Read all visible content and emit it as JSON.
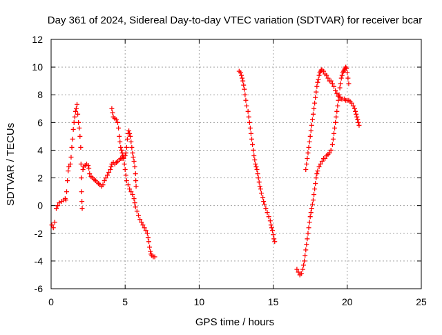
{
  "chart_data": {
    "type": "scatter",
    "title": "Day 361 of 2024, Sidereal Day-to-day VTEC variation (SDTVAR) for receiver bcar",
    "xlabel": "GPS time / hours",
    "ylabel": "SDTVAR / TECUs",
    "xlim": [
      0,
      25
    ],
    "ylim": [
      -6,
      12
    ],
    "xticks": [
      "0",
      "5",
      "10",
      "15",
      "20",
      "25"
    ],
    "yticks": [
      "-6",
      "-4",
      "-2",
      "0",
      "2",
      "4",
      "6",
      "8",
      "10",
      "12"
    ],
    "grid": true,
    "marker": "+",
    "color": "#ff0000",
    "series": [
      {
        "points": [
          [
            0.05,
            -1.4
          ],
          [
            0.15,
            -1.6
          ],
          [
            0.25,
            -1.2
          ],
          [
            0.35,
            -0.2
          ],
          [
            0.45,
            0.0
          ],
          [
            0.55,
            0.2
          ],
          [
            0.7,
            0.3
          ],
          [
            0.85,
            0.4
          ],
          [
            0.95,
            0.5
          ],
          [
            1.0,
            0.4
          ],
          [
            1.05,
            1.0
          ],
          [
            1.1,
            1.8
          ],
          [
            1.15,
            2.5
          ],
          [
            1.2,
            2.8
          ],
          [
            1.3,
            3.0
          ],
          [
            1.35,
            3.5
          ],
          [
            1.4,
            4.2
          ],
          [
            1.45,
            4.8
          ],
          [
            1.5,
            5.5
          ],
          [
            1.55,
            6.0
          ],
          [
            1.6,
            6.4
          ],
          [
            1.65,
            6.8
          ],
          [
            1.7,
            7.0
          ],
          [
            1.75,
            7.3
          ],
          [
            1.8,
            6.6
          ],
          [
            1.85,
            6.0
          ],
          [
            1.9,
            5.6
          ],
          [
            1.95,
            5.0
          ],
          [
            2.0,
            4.2
          ],
          [
            2.02,
            3.0
          ],
          [
            2.04,
            2.0
          ],
          [
            2.06,
            1.0
          ],
          [
            2.08,
            0.3
          ],
          [
            2.1,
            -0.2
          ],
          [
            2.15,
            2.6
          ],
          [
            2.2,
            2.8
          ],
          [
            2.3,
            2.9
          ],
          [
            2.4,
            3.0
          ],
          [
            2.5,
            2.9
          ],
          [
            2.55,
            2.7
          ],
          [
            2.6,
            2.3
          ],
          [
            2.7,
            2.1
          ],
          [
            2.8,
            2.0
          ],
          [
            2.9,
            1.9
          ],
          [
            3.0,
            1.8
          ],
          [
            3.1,
            1.7
          ],
          [
            3.2,
            1.6
          ],
          [
            3.3,
            1.5
          ],
          [
            3.4,
            1.4
          ],
          [
            3.5,
            1.5
          ],
          [
            3.6,
            1.8
          ],
          [
            3.7,
            2.0
          ],
          [
            3.8,
            2.2
          ],
          [
            3.9,
            2.4
          ],
          [
            4.0,
            2.6
          ],
          [
            4.05,
            2.8
          ],
          [
            4.1,
            3.0
          ],
          [
            4.2,
            3.1
          ],
          [
            4.3,
            3.0
          ],
          [
            4.4,
            3.1
          ],
          [
            4.5,
            3.2
          ],
          [
            4.6,
            3.3
          ],
          [
            4.7,
            3.4
          ],
          [
            4.8,
            3.4
          ],
          [
            4.9,
            3.5
          ],
          [
            5.0,
            3.6
          ],
          [
            5.05,
            3.8
          ],
          [
            5.1,
            4.2
          ],
          [
            5.15,
            4.8
          ],
          [
            5.2,
            5.2
          ],
          [
            5.25,
            5.4
          ],
          [
            5.3,
            5.2
          ],
          [
            5.35,
            5.0
          ],
          [
            5.4,
            4.6
          ],
          [
            5.45,
            4.2
          ],
          [
            5.5,
            3.8
          ],
          [
            5.55,
            3.5
          ],
          [
            5.6,
            3.2
          ],
          [
            5.65,
            2.8
          ],
          [
            5.7,
            2.3
          ],
          [
            5.72,
            1.8
          ],
          [
            5.74,
            1.4
          ]
        ]
      },
      {
        "points": [
          [
            4.1,
            7.0
          ],
          [
            4.15,
            6.7
          ],
          [
            4.2,
            6.4
          ],
          [
            4.3,
            6.3
          ],
          [
            4.4,
            6.2
          ],
          [
            4.5,
            6.0
          ],
          [
            4.55,
            5.6
          ],
          [
            4.6,
            5.0
          ],
          [
            4.65,
            4.6
          ],
          [
            4.7,
            4.2
          ],
          [
            4.75,
            4.0
          ],
          [
            4.8,
            3.8
          ],
          [
            4.85,
            3.6
          ],
          [
            4.9,
            3.4
          ],
          [
            4.95,
            3.0
          ],
          [
            5.0,
            2.6
          ],
          [
            5.05,
            2.2
          ],
          [
            5.1,
            1.8
          ],
          [
            5.2,
            1.5
          ],
          [
            5.3,
            1.2
          ],
          [
            5.4,
            1.0
          ],
          [
            5.5,
            0.8
          ],
          [
            5.6,
            0.5
          ],
          [
            5.65,
            0.2
          ],
          [
            5.7,
            -0.1
          ],
          [
            5.8,
            -0.4
          ],
          [
            5.9,
            -0.7
          ],
          [
            6.0,
            -1.0
          ],
          [
            6.1,
            -1.2
          ],
          [
            6.2,
            -1.4
          ],
          [
            6.3,
            -1.6
          ],
          [
            6.4,
            -1.8
          ],
          [
            6.5,
            -2.0
          ],
          [
            6.55,
            -2.3
          ],
          [
            6.6,
            -2.6
          ],
          [
            6.65,
            -3.0
          ],
          [
            6.7,
            -3.3
          ],
          [
            6.75,
            -3.5
          ],
          [
            6.8,
            -3.6
          ],
          [
            6.9,
            -3.7
          ],
          [
            7.0,
            -3.7
          ]
        ]
      },
      {
        "points": [
          [
            12.7,
            9.7
          ],
          [
            12.8,
            9.6
          ],
          [
            12.85,
            9.4
          ],
          [
            12.9,
            9.2
          ],
          [
            12.95,
            9.0
          ],
          [
            13.0,
            8.7
          ],
          [
            13.05,
            8.4
          ],
          [
            13.1,
            8.0
          ],
          [
            13.15,
            7.6
          ],
          [
            13.2,
            7.2
          ],
          [
            13.3,
            6.8
          ],
          [
            13.35,
            6.4
          ],
          [
            13.4,
            6.0
          ],
          [
            13.45,
            5.6
          ],
          [
            13.5,
            5.2
          ],
          [
            13.55,
            4.8
          ],
          [
            13.6,
            4.4
          ],
          [
            13.65,
            4.0
          ],
          [
            13.7,
            3.6
          ],
          [
            13.75,
            3.3
          ],
          [
            13.8,
            3.0
          ],
          [
            13.85,
            2.8
          ],
          [
            13.9,
            2.6
          ],
          [
            13.95,
            2.3
          ],
          [
            14.0,
            2.0
          ],
          [
            14.05,
            1.7
          ],
          [
            14.1,
            1.4
          ],
          [
            14.15,
            1.2
          ],
          [
            14.2,
            0.9
          ],
          [
            14.3,
            0.6
          ],
          [
            14.35,
            0.3
          ],
          [
            14.4,
            0.1
          ],
          [
            14.5,
            -0.2
          ],
          [
            14.6,
            -0.5
          ],
          [
            14.7,
            -0.8
          ],
          [
            14.8,
            -1.1
          ],
          [
            14.85,
            -1.4
          ],
          [
            14.9,
            -1.6
          ],
          [
            14.95,
            -1.8
          ],
          [
            15.0,
            -2.1
          ],
          [
            15.05,
            -2.4
          ],
          [
            15.1,
            -2.6
          ]
        ]
      },
      {
        "points": [
          [
            16.6,
            -4.6
          ],
          [
            16.7,
            -4.8
          ],
          [
            16.8,
            -5.0
          ],
          [
            16.9,
            -4.9
          ],
          [
            17.0,
            -4.6
          ],
          [
            17.05,
            -4.3
          ],
          [
            17.1,
            -4.0
          ],
          [
            17.15,
            -3.6
          ],
          [
            17.2,
            -3.2
          ],
          [
            17.25,
            -2.8
          ],
          [
            17.3,
            -2.4
          ],
          [
            17.35,
            -2.0
          ],
          [
            17.4,
            -1.6
          ],
          [
            17.45,
            -1.2
          ],
          [
            17.5,
            -0.8
          ],
          [
            17.55,
            -0.5
          ],
          [
            17.6,
            -0.2
          ],
          [
            17.65,
            0.1
          ],
          [
            17.7,
            0.4
          ],
          [
            17.75,
            0.8
          ],
          [
            17.8,
            1.2
          ],
          [
            17.85,
            1.6
          ],
          [
            17.9,
            2.0
          ],
          [
            17.95,
            2.3
          ],
          [
            18.0,
            2.5
          ],
          [
            18.1,
            2.8
          ],
          [
            18.2,
            3.0
          ],
          [
            18.3,
            3.2
          ],
          [
            18.4,
            3.4
          ],
          [
            18.5,
            3.4
          ],
          [
            18.6,
            3.6
          ],
          [
            18.7,
            3.7
          ],
          [
            18.8,
            3.8
          ],
          [
            18.9,
            4.0
          ],
          [
            19.0,
            4.4
          ],
          [
            19.05,
            4.8
          ],
          [
            19.1,
            5.2
          ],
          [
            19.15,
            5.6
          ],
          [
            19.2,
            6.0
          ],
          [
            19.25,
            6.4
          ],
          [
            19.3,
            6.8
          ],
          [
            19.35,
            7.2
          ],
          [
            19.4,
            7.6
          ],
          [
            19.45,
            8.0
          ],
          [
            19.5,
            8.5
          ],
          [
            19.55,
            8.8
          ],
          [
            19.6,
            9.2
          ],
          [
            19.65,
            9.4
          ],
          [
            19.7,
            9.6
          ],
          [
            19.75,
            9.7
          ],
          [
            19.8,
            9.8
          ],
          [
            19.85,
            9.9
          ],
          [
            19.9,
            10.0
          ],
          [
            19.95,
            9.9
          ],
          [
            20.0,
            9.6
          ],
          [
            20.05,
            9.2
          ],
          [
            20.1,
            8.8
          ]
        ]
      },
      {
        "points": [
          [
            17.2,
            2.6
          ],
          [
            17.25,
            3.0
          ],
          [
            17.3,
            3.4
          ],
          [
            17.35,
            3.8
          ],
          [
            17.4,
            4.2
          ],
          [
            17.45,
            4.6
          ],
          [
            17.5,
            5.0
          ],
          [
            17.55,
            5.4
          ],
          [
            17.6,
            5.8
          ],
          [
            17.65,
            6.2
          ],
          [
            17.7,
            6.6
          ],
          [
            17.75,
            7.0
          ],
          [
            17.8,
            7.4
          ],
          [
            17.85,
            7.8
          ],
          [
            17.9,
            8.2
          ],
          [
            17.95,
            8.6
          ],
          [
            18.0,
            8.9
          ],
          [
            18.05,
            9.1
          ],
          [
            18.1,
            9.4
          ],
          [
            18.15,
            9.6
          ],
          [
            18.2,
            9.7
          ],
          [
            18.25,
            9.8
          ],
          [
            18.3,
            9.8
          ],
          [
            18.4,
            9.7
          ],
          [
            18.5,
            9.5
          ],
          [
            18.6,
            9.4
          ],
          [
            18.7,
            9.2
          ],
          [
            18.8,
            9.0
          ],
          [
            18.9,
            9.0
          ],
          [
            19.0,
            8.8
          ],
          [
            19.1,
            8.6
          ],
          [
            19.2,
            8.3
          ],
          [
            19.3,
            8.1
          ],
          [
            19.4,
            7.9
          ],
          [
            19.5,
            7.8
          ],
          [
            19.6,
            7.7
          ],
          [
            19.7,
            7.7
          ],
          [
            19.8,
            7.7
          ],
          [
            19.9,
            7.6
          ],
          [
            20.0,
            7.6
          ],
          [
            20.1,
            7.6
          ],
          [
            20.2,
            7.5
          ],
          [
            20.3,
            7.4
          ],
          [
            20.4,
            7.2
          ],
          [
            20.5,
            7.0
          ],
          [
            20.55,
            6.8
          ],
          [
            20.6,
            6.6
          ],
          [
            20.65,
            6.4
          ],
          [
            20.7,
            6.2
          ],
          [
            20.75,
            6.0
          ],
          [
            20.8,
            5.8
          ]
        ]
      }
    ]
  }
}
